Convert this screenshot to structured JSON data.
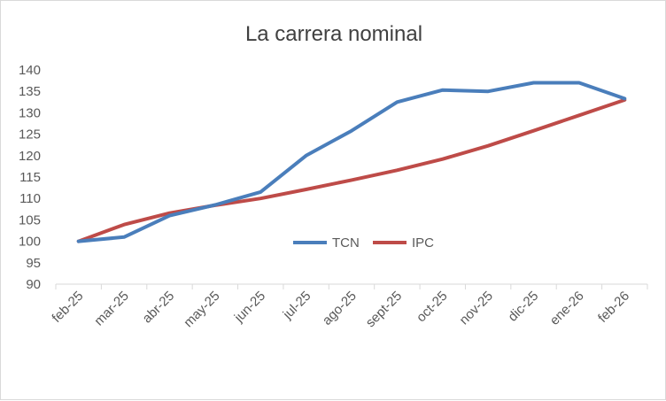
{
  "chart_data": {
    "type": "line",
    "title": "La carrera nominal",
    "xlabel": "",
    "ylabel": "",
    "categories": [
      "feb-25",
      "mar-25",
      "abr-25",
      "may-25",
      "jun-25",
      "jul-25",
      "ago-25",
      "sept-25",
      "oct-25",
      "nov-25",
      "dic-25",
      "ene-26",
      "feb-26"
    ],
    "ylim": [
      90,
      140
    ],
    "yticks": [
      90,
      95,
      100,
      105,
      110,
      115,
      120,
      125,
      130,
      135,
      140
    ],
    "grid": false,
    "legend_position": "center",
    "series": [
      {
        "name": "TCN",
        "color": "#4a7ebb",
        "values": [
          100,
          101,
          106,
          108.5,
          111.5,
          120,
          125.8,
          132.5,
          135.3,
          135,
          137,
          137,
          133.3
        ]
      },
      {
        "name": "IPC",
        "color": "#be4b48",
        "values": [
          100,
          103.9,
          106.6,
          108.4,
          110,
          112.1,
          114.3,
          116.6,
          119.2,
          122.3,
          125.8,
          129.4,
          133
        ]
      }
    ]
  }
}
